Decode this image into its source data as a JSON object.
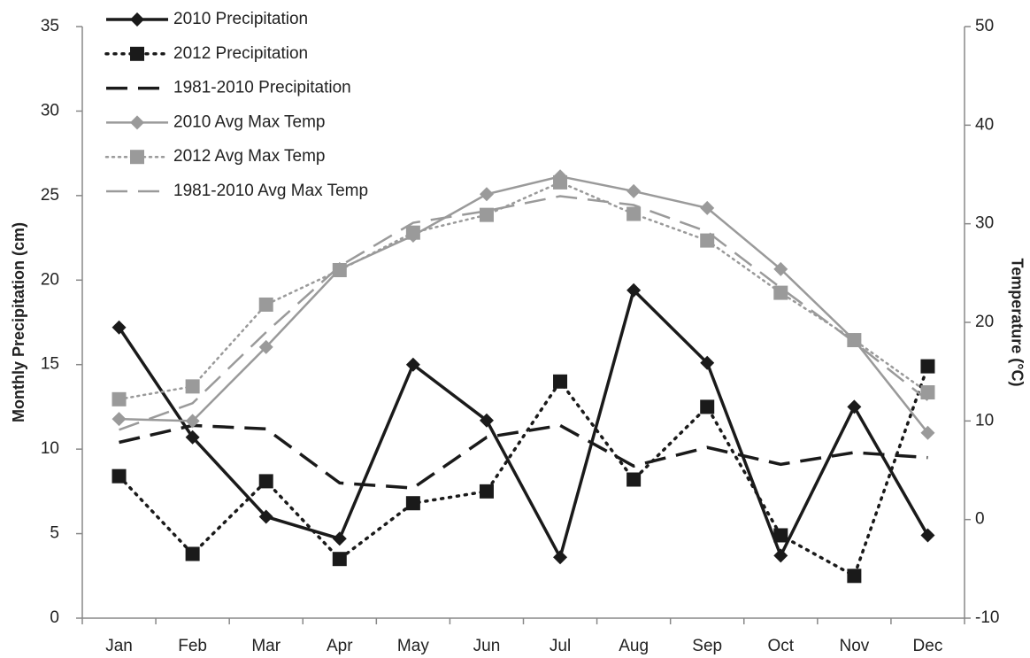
{
  "chart_data": {
    "type": "line",
    "y_label": "Monthly Precipitation (cm)",
    "y2_label": "Temperature (°C)",
    "categories": [
      "Jan",
      "Feb",
      "Mar",
      "Apr",
      "May",
      "Jun",
      "Jul",
      "Aug",
      "Sep",
      "Oct",
      "Nov",
      "Dec"
    ],
    "ylim": [
      0,
      35
    ],
    "yticks": [
      0,
      5,
      10,
      15,
      20,
      25,
      30,
      35
    ],
    "y2lim": [
      -10,
      50
    ],
    "y2ticks": [
      -10,
      0,
      10,
      20,
      30,
      40,
      50
    ],
    "legend": "top-left",
    "series": [
      {
        "name": "2010 Precipitation",
        "color": "#1a1a1a",
        "dash": "solid",
        "marker": "diamond",
        "axis": "y",
        "values": [
          17.2,
          10.7,
          6.0,
          4.7,
          15.0,
          11.7,
          3.6,
          19.4,
          15.1,
          3.7,
          12.5,
          4.9
        ]
      },
      {
        "name": "2012 Precipitation",
        "color": "#1a1a1a",
        "dash": "dotted",
        "marker": "square",
        "axis": "y",
        "values": [
          8.4,
          3.8,
          8.1,
          3.5,
          6.8,
          7.5,
          14.0,
          8.2,
          12.5,
          4.9,
          2.5,
          14.9
        ]
      },
      {
        "name": "1981-2010 Precipitation",
        "color": "#1a1a1a",
        "dash": "dashed",
        "marker": "none",
        "axis": "y",
        "values": [
          10.4,
          11.4,
          11.2,
          8.0,
          7.7,
          10.7,
          11.4,
          9.0,
          10.1,
          9.1,
          9.8,
          9.5
        ]
      },
      {
        "name": "2010 Avg Max Temp",
        "color": "#9a9a9a",
        "dash": "solid",
        "marker": "diamond",
        "axis": "y2",
        "values": [
          10.2,
          10.0,
          17.5,
          25.4,
          28.8,
          33.0,
          34.8,
          33.3,
          31.6,
          25.4,
          18.2,
          8.8
        ]
      },
      {
        "name": "2012 Avg Max Temp",
        "color": "#9a9a9a",
        "dash": "dotted",
        "marker": "square",
        "axis": "y2",
        "values": [
          12.2,
          13.5,
          21.8,
          25.3,
          29.1,
          30.9,
          34.2,
          31.0,
          28.3,
          23.0,
          18.2,
          12.9
        ]
      },
      {
        "name": "1981-2010 Avg Max Temp",
        "color": "#9a9a9a",
        "dash": "dashed",
        "marker": "none",
        "axis": "y2",
        "values": [
          9.1,
          11.8,
          19.0,
          25.7,
          30.1,
          31.3,
          32.8,
          31.9,
          29.2,
          23.5,
          18.0,
          12.1
        ]
      }
    ]
  }
}
